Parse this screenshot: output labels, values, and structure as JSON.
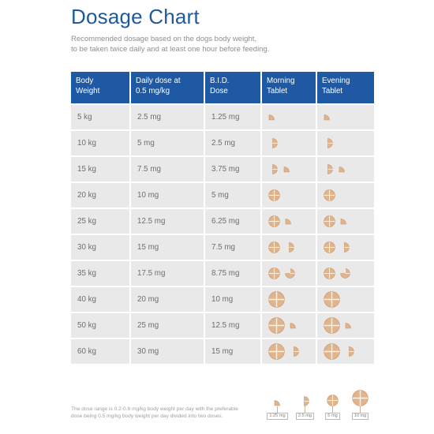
{
  "title": "Dosage Chart",
  "subtitle": [
    "Recommended dosage based on the dogs body weight,",
    "to be taken twice daily and at least one hour before feeding."
  ],
  "table": {
    "headers": [
      [
        "Body",
        "Weight"
      ],
      [
        "Daily dose at",
        "0.5 mg/kg"
      ],
      [
        "B.I.D.",
        "Dose"
      ],
      [
        "Morning",
        "Tablet"
      ],
      [
        "Evening",
        "Tablet"
      ]
    ],
    "rows": [
      {
        "weight": "5 kg",
        "daily": "2.5 mg",
        "bid": "1.25 mg",
        "tablets": [
          "q"
        ]
      },
      {
        "weight": "10 kg",
        "daily": "5 mg",
        "bid": "2.5 mg",
        "tablets": [
          "h"
        ]
      },
      {
        "weight": "15 kg",
        "daily": "7.5 mg",
        "bid": "3.75 mg",
        "tablets": [
          "h",
          "q"
        ]
      },
      {
        "weight": "20 kg",
        "daily": "10 mg",
        "bid": "5 mg",
        "tablets": [
          "f"
        ]
      },
      {
        "weight": "25 kg",
        "daily": "12.5 mg",
        "bid": "6.25 mg",
        "tablets": [
          "f",
          "q"
        ]
      },
      {
        "weight": "30 kg",
        "daily": "15 mg",
        "bid": "7.5 mg",
        "tablets": [
          "f",
          "h"
        ]
      },
      {
        "weight": "35 kg",
        "daily": "17.5 mg",
        "bid": "8.75 mg",
        "tablets": [
          "f",
          "t"
        ]
      },
      {
        "weight": "40 kg",
        "daily": "20 mg",
        "bid": "10 mg",
        "tablets": [
          "F"
        ]
      },
      {
        "weight": "50 kg",
        "daily": "25 mg",
        "bid": "12.5 mg",
        "tablets": [
          "F",
          "q"
        ]
      },
      {
        "weight": "60 kg",
        "daily": "30 mg",
        "bid": "15 mg",
        "tablets": [
          "F",
          "h"
        ]
      }
    ]
  },
  "note": [
    "The dose range is 0.2-0.6 mg/kg body weight per day with the preferable",
    "dose being 0.5 mg/kg body weight per day divided into two doses."
  ],
  "legend": [
    {
      "label": "1.25 mg",
      "size": "q"
    },
    {
      "label": "2.5 mg",
      "size": "h"
    },
    {
      "label": "5 mg",
      "size": "f"
    },
    {
      "label": "10 mg",
      "size": "F"
    }
  ],
  "colors": {
    "title": "#1f5a9a",
    "header_bg": "#2059a3",
    "row_bg": "#e9e9e9",
    "tablet_fill": "#e0b48c",
    "tablet_edge": "#c9956a",
    "tablet_score": "#fff3e6"
  }
}
